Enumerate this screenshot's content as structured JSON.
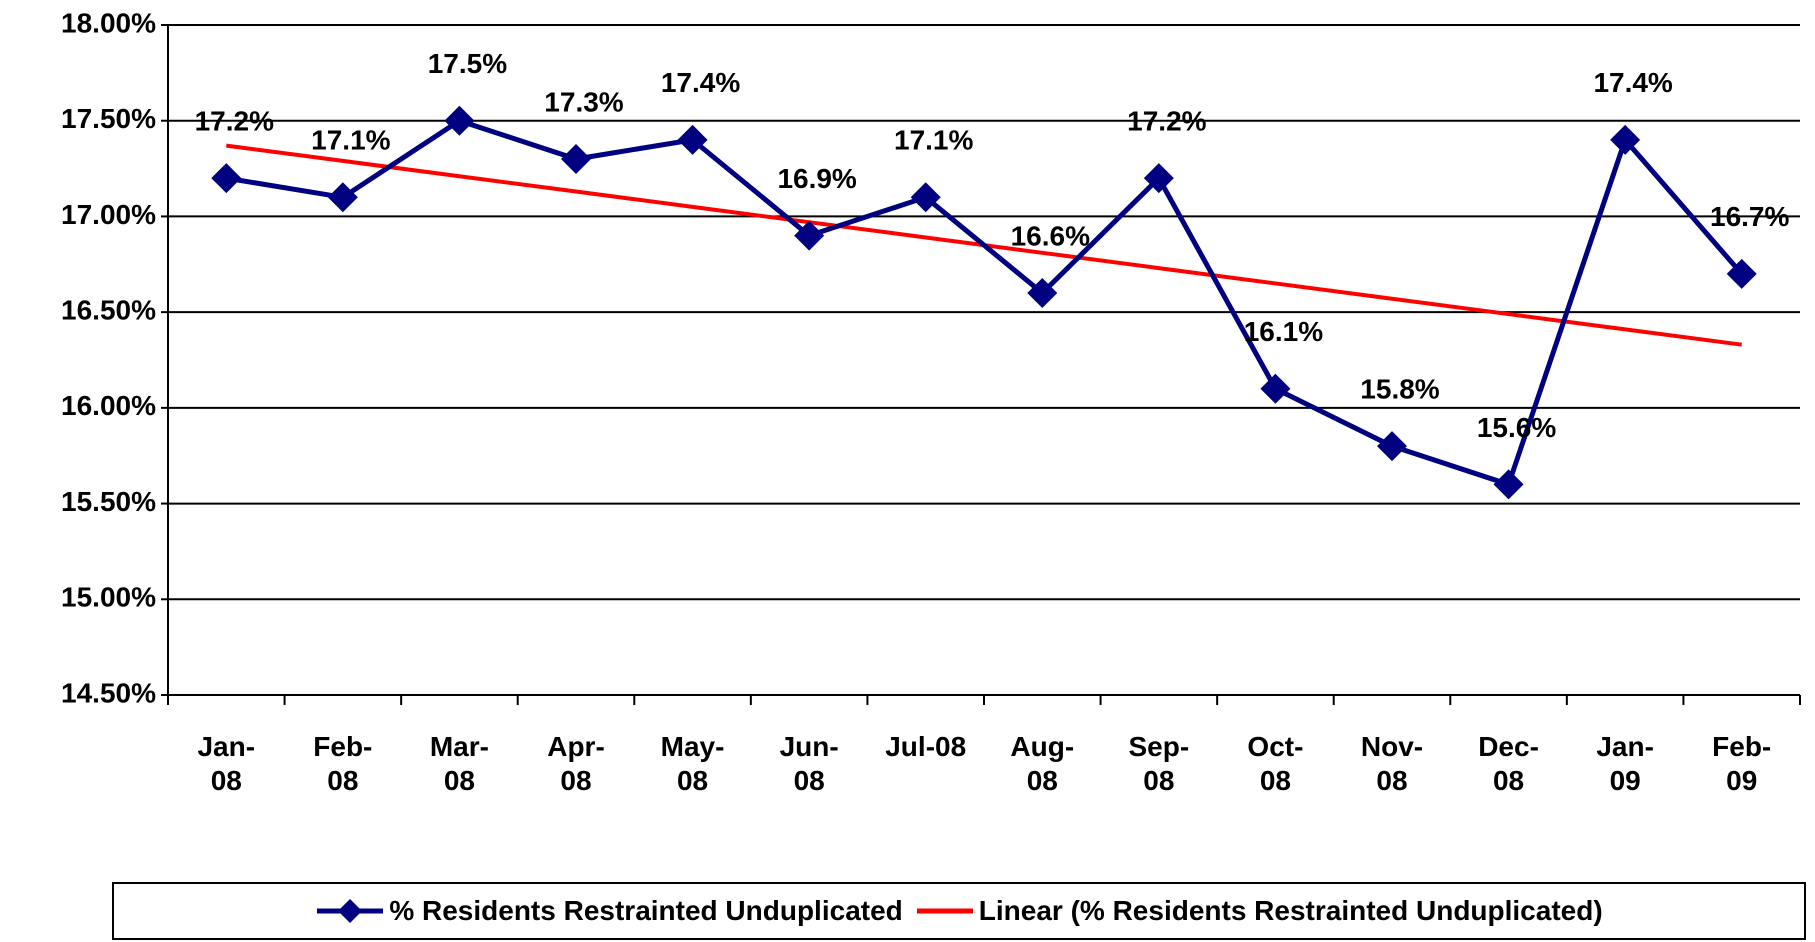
{
  "chart_data": {
    "type": "line",
    "categories": [
      "Jan-08",
      "Feb-08",
      "Mar-08",
      "Apr-08",
      "May-08",
      "Jun-08",
      "Jul-08",
      "Aug-08",
      "Sep-08",
      "Oct-08",
      "Nov-08",
      "Dec-08",
      "Jan-09",
      "Feb-09"
    ],
    "series": [
      {
        "name": "% Residents Restrainted Unduplicated",
        "color": "#000080",
        "values": [
          17.2,
          17.1,
          17.5,
          17.3,
          17.4,
          16.9,
          17.1,
          16.6,
          17.2,
          16.1,
          15.8,
          15.6,
          17.4,
          16.7
        ],
        "value_labels": [
          "17.2%",
          "17.1%",
          "17.5%",
          "17.3%",
          "17.4%",
          "16.9%",
          "17.1%",
          "16.6%",
          "17.2%",
          "16.1%",
          "15.8%",
          "15.6%",
          "17.4%",
          "16.7%"
        ]
      },
      {
        "name": "Linear (% Residents Restrainted Unduplicated)",
        "color": "#ff0000",
        "values": [
          17.37,
          17.29,
          17.21,
          17.13,
          17.05,
          16.97,
          16.89,
          16.81,
          16.73,
          16.65,
          16.57,
          16.49,
          16.41,
          16.33
        ]
      }
    ],
    "ylim": [
      14.5,
      18.0
    ],
    "yticks": [
      {
        "value": 14.5,
        "label": "14.50%"
      },
      {
        "value": 15.0,
        "label": "15.00%"
      },
      {
        "value": 15.5,
        "label": "15.50%"
      },
      {
        "value": 16.0,
        "label": "16.00%"
      },
      {
        "value": 16.5,
        "label": "16.50%"
      },
      {
        "value": 17.0,
        "label": "17.00%"
      },
      {
        "value": 17.5,
        "label": "17.50%"
      },
      {
        "value": 18.0,
        "label": "18.00%"
      }
    ],
    "grid": true,
    "legend": "bottom"
  }
}
